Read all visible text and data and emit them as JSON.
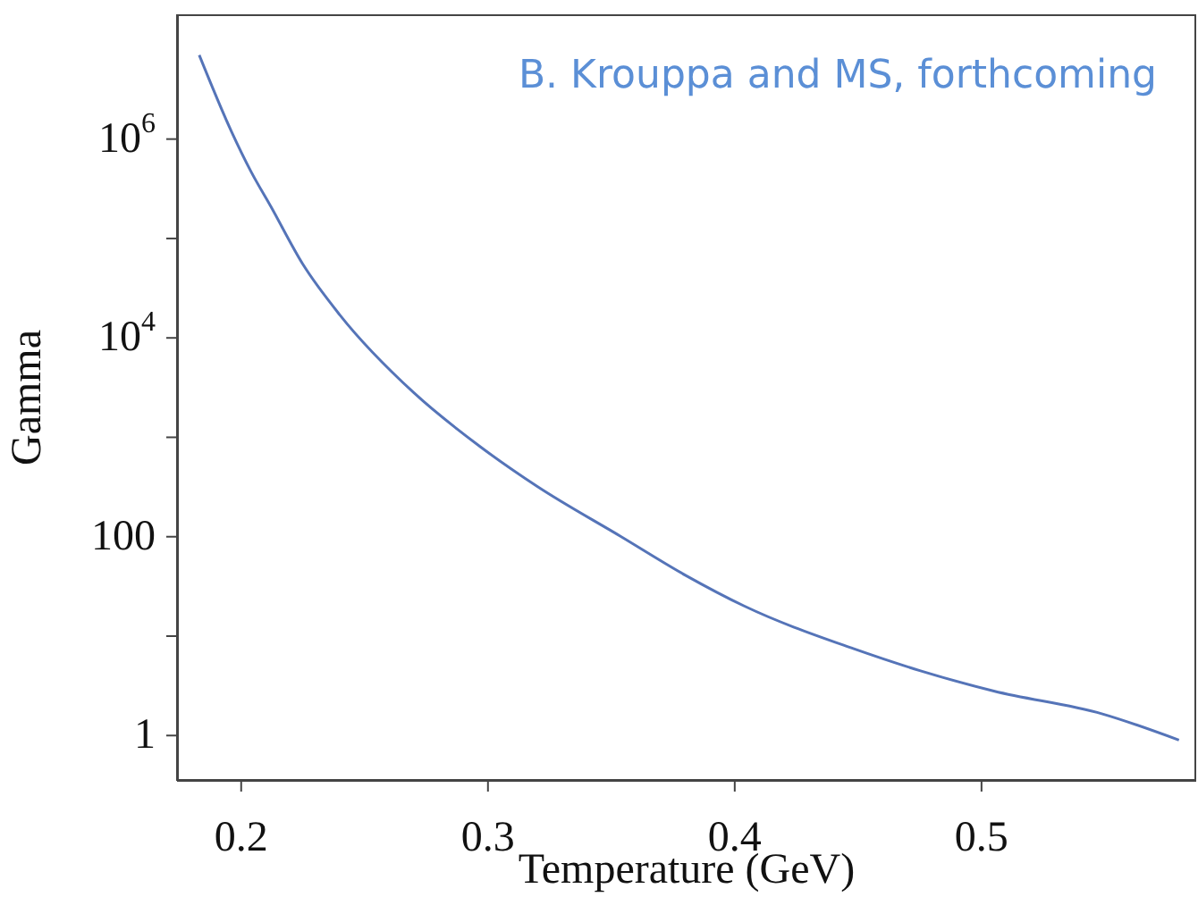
{
  "chart_data": {
    "type": "line",
    "xlabel": "Temperature (GeV)",
    "ylabel": "Gamma",
    "log": "y",
    "annotations": [
      "B. Krouppa and MS, forthcoming"
    ],
    "x": [
      0.183,
      0.196,
      0.204,
      0.212,
      0.225,
      0.24,
      0.27,
      0.297,
      0.32,
      0.354,
      0.38,
      0.404,
      0.448,
      0.475,
      0.505,
      0.549,
      0.58
    ],
    "series": [
      {
        "color": "#5574b8",
        "values": [
          7000000,
          1200000,
          470000,
          210000,
          55000,
          17000,
          2800,
          800,
          320,
          100,
          41,
          20,
          7.5,
          4.5,
          2.8,
          1.65,
          0.9
        ]
      }
    ],
    "xlim": [
      0.174,
      0.587
    ],
    "xticks": [
      0.2,
      0.3,
      0.4,
      0.5
    ],
    "ylim": [
      0.35,
      18000000
    ],
    "yticks": [
      1,
      {
        "value": 10,
        "label": null
      },
      100,
      {
        "value": 1000,
        "label": null
      },
      {
        "value": 10000,
        "label": "10$^{4}$"
      },
      {
        "value": 100000,
        "label": null
      },
      {
        "value": 1000000,
        "label": "10$^{6}$"
      }
    ]
  }
}
